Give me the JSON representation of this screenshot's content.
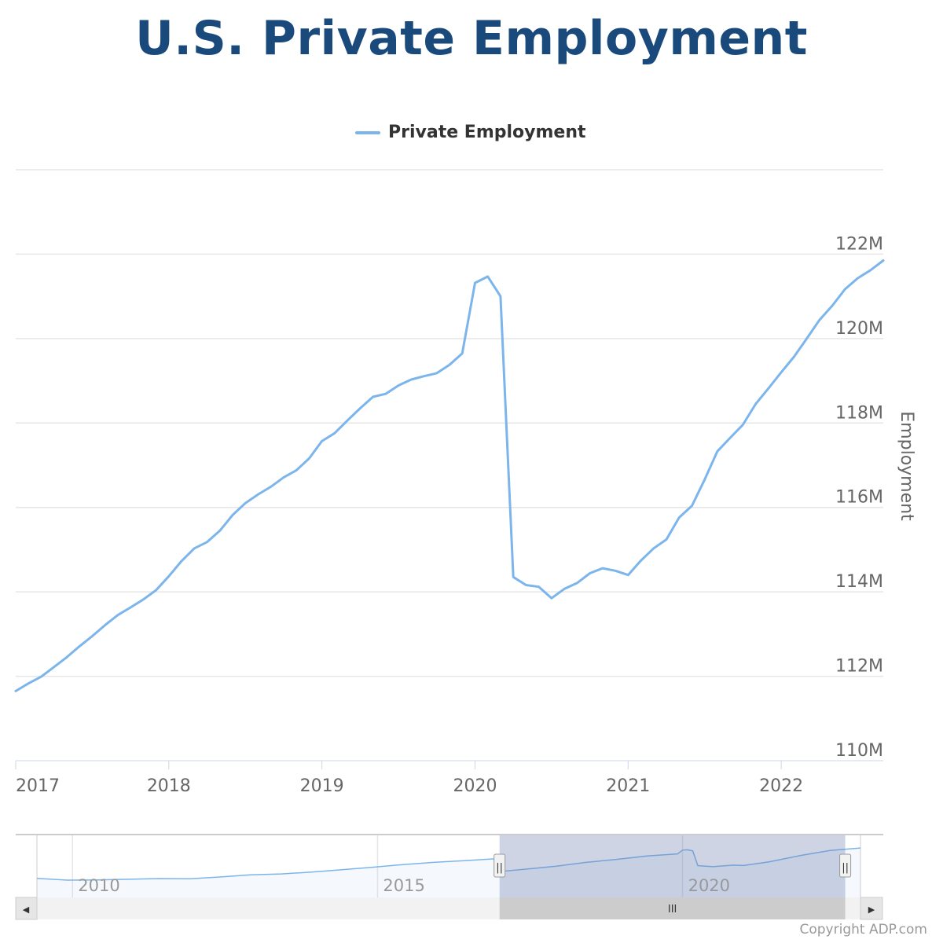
{
  "chart_data": {
    "type": "line",
    "title": "U.S. Private Employment",
    "xlabel": "",
    "ylabel": "Employment",
    "legend": {
      "position": "top-center"
    },
    "grid": {
      "y": true,
      "x": false
    },
    "ylim": [
      110,
      124
    ],
    "y_ticks": [
      {
        "value": 110,
        "label": "110M"
      },
      {
        "value": 112,
        "label": "112M"
      },
      {
        "value": 114,
        "label": "114M"
      },
      {
        "value": 116,
        "label": "116M"
      },
      {
        "value": 118,
        "label": "118M"
      },
      {
        "value": 120,
        "label": "120M"
      },
      {
        "value": 122,
        "label": "122M"
      }
    ],
    "xlim": [
      "2017-01",
      "2022-09"
    ],
    "x_ticks": [
      {
        "value": "2017-01",
        "label": "2017"
      },
      {
        "value": "2018-01",
        "label": "2018"
      },
      {
        "value": "2019-01",
        "label": "2019"
      },
      {
        "value": "2020-01",
        "label": "2020"
      },
      {
        "value": "2021-01",
        "label": "2021"
      },
      {
        "value": "2022-01",
        "label": "2022"
      }
    ],
    "series": [
      {
        "name": "Private Employment",
        "color": "#7cb5ec",
        "points": [
          [
            "2017-01",
            111.65
          ],
          [
            "2017-02",
            111.83
          ],
          [
            "2017-03",
            111.99
          ],
          [
            "2017-04",
            112.22
          ],
          [
            "2017-05",
            112.45
          ],
          [
            "2017-06",
            112.71
          ],
          [
            "2017-07",
            112.95
          ],
          [
            "2017-08",
            113.21
          ],
          [
            "2017-09",
            113.45
          ],
          [
            "2017-10",
            113.63
          ],
          [
            "2017-11",
            113.82
          ],
          [
            "2017-12",
            114.04
          ],
          [
            "2018-01",
            114.37
          ],
          [
            "2018-02",
            114.73
          ],
          [
            "2018-03",
            115.03
          ],
          [
            "2018-04",
            115.18
          ],
          [
            "2018-05",
            115.45
          ],
          [
            "2018-06",
            115.82
          ],
          [
            "2018-07",
            116.1
          ],
          [
            "2018-08",
            116.31
          ],
          [
            "2018-09",
            116.49
          ],
          [
            "2018-10",
            116.71
          ],
          [
            "2018-11",
            116.88
          ],
          [
            "2018-12",
            117.16
          ],
          [
            "2019-01",
            117.57
          ],
          [
            "2019-02",
            117.76
          ],
          [
            "2019-03",
            118.06
          ],
          [
            "2019-04",
            118.35
          ],
          [
            "2019-05",
            118.62
          ],
          [
            "2019-06",
            118.69
          ],
          [
            "2019-07",
            118.89
          ],
          [
            "2019-08",
            119.03
          ],
          [
            "2019-09",
            119.11
          ],
          [
            "2019-10",
            119.18
          ],
          [
            "2019-11",
            119.38
          ],
          [
            "2019-12",
            119.65
          ],
          [
            "2020-01",
            121.32
          ],
          [
            "2020-02",
            121.47
          ],
          [
            "2020-03",
            121.0
          ],
          [
            "2020-04",
            114.35
          ],
          [
            "2020-05",
            114.16
          ],
          [
            "2020-06",
            114.12
          ],
          [
            "2020-07",
            113.85
          ],
          [
            "2020-08",
            114.07
          ],
          [
            "2020-09",
            114.21
          ],
          [
            "2020-10",
            114.44
          ],
          [
            "2020-11",
            114.56
          ],
          [
            "2020-12",
            114.5
          ],
          [
            "2021-01",
            114.4
          ],
          [
            "2021-02",
            114.74
          ],
          [
            "2021-03",
            115.03
          ],
          [
            "2021-04",
            115.24
          ],
          [
            "2021-05",
            115.76
          ],
          [
            "2021-06",
            116.04
          ],
          [
            "2021-07",
            116.66
          ],
          [
            "2021-08",
            117.33
          ],
          [
            "2021-09",
            117.65
          ],
          [
            "2021-10",
            117.96
          ],
          [
            "2021-11",
            118.45
          ],
          [
            "2021-12",
            118.82
          ],
          [
            "2022-01",
            119.2
          ],
          [
            "2022-02",
            119.57
          ],
          [
            "2022-03",
            120.0
          ],
          [
            "2022-04",
            120.44
          ],
          [
            "2022-05",
            120.78
          ],
          [
            "2022-06",
            121.17
          ],
          [
            "2022-07",
            121.43
          ],
          [
            "2022-08",
            121.62
          ],
          [
            "2022-09",
            121.85
          ]
        ]
      }
    ]
  },
  "navigator": {
    "xlim": [
      "2009-06",
      "2022-12"
    ],
    "ylim": [
      100,
      128
    ],
    "selected_range": [
      "2017-01",
      "2022-09"
    ],
    "x_ticks": [
      {
        "value": "2010-01",
        "label": "2010"
      },
      {
        "value": "2015-01",
        "label": "2015"
      },
      {
        "value": "2020-01",
        "label": "2020"
      }
    ],
    "series": [
      [
        "2009-06",
        108.6
      ],
      [
        "2009-12",
        107.8
      ],
      [
        "2010-06",
        107.9
      ],
      [
        "2010-12",
        108.2
      ],
      [
        "2011-06",
        108.5
      ],
      [
        "2011-12",
        108.4
      ],
      [
        "2012-06",
        109.2
      ],
      [
        "2012-12",
        110.2
      ],
      [
        "2013-06",
        110.6
      ],
      [
        "2013-12",
        111.4
      ],
      [
        "2014-06",
        112.5
      ],
      [
        "2014-12",
        113.6
      ],
      [
        "2015-06",
        114.8
      ],
      [
        "2015-12",
        115.8
      ],
      [
        "2016-06",
        116.6
      ],
      [
        "2016-12",
        117.4
      ],
      [
        "2017-01",
        111.65
      ],
      [
        "2017-07",
        112.95
      ],
      [
        "2017-12",
        114.04
      ],
      [
        "2018-06",
        115.82
      ],
      [
        "2018-12",
        117.16
      ],
      [
        "2019-06",
        118.69
      ],
      [
        "2019-12",
        119.65
      ],
      [
        "2020-01",
        121.32
      ],
      [
        "2020-02",
        121.47
      ],
      [
        "2020-03",
        121.0
      ],
      [
        "2020-04",
        114.35
      ],
      [
        "2020-07",
        113.85
      ],
      [
        "2020-11",
        114.56
      ],
      [
        "2021-01",
        114.4
      ],
      [
        "2021-06",
        116.04
      ],
      [
        "2021-12",
        118.82
      ],
      [
        "2022-06",
        121.17
      ],
      [
        "2022-12",
        122.3
      ]
    ]
  },
  "scrollbar": {
    "left_arrow_icon": "◀",
    "right_arrow_icon": "▶",
    "thumb_grip": "III",
    "handle_grip": "||"
  },
  "copyright": "Copyright ADP.com"
}
